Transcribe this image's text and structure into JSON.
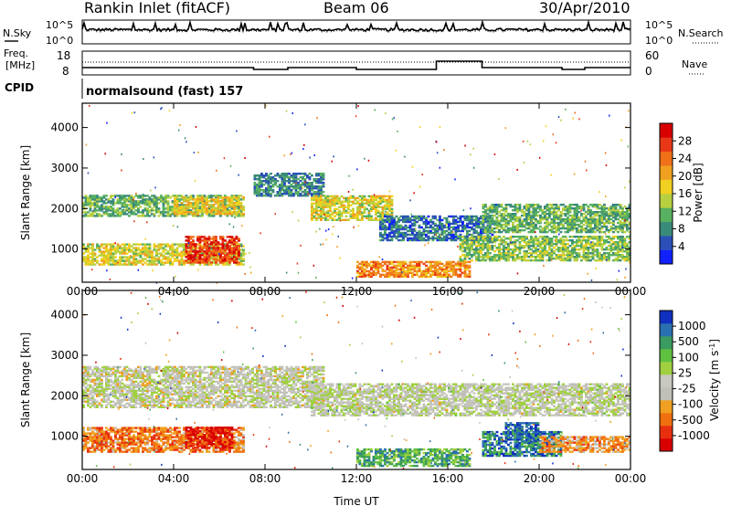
{
  "header": {
    "station": "Rankin Inlet (fitACF)",
    "beam": "Beam 06",
    "date": "30/Apr/2010"
  },
  "labels": {
    "nsky": "N.Sky",
    "nsearch": "N.Search",
    "freq": "Freq.",
    "mhz": "[MHz]",
    "nave": "Nave",
    "cpid": "CPID",
    "cpid_value": "normalsound (fast) 157"
  },
  "noise_axis": {
    "ticks": [
      "10^5",
      "10^0"
    ]
  },
  "freq_axis": {
    "left_ticks": [
      "18",
      "8"
    ],
    "right_ticks": [
      "60",
      "0"
    ]
  },
  "chart_data": [
    {
      "type": "heatmap",
      "name": "power-panel",
      "xlabel": "",
      "ylabel": "Slant Range [km]",
      "x_ticks": [
        "00:00",
        "04:00",
        "08:00",
        "12:00",
        "16:00",
        "20:00",
        "00:00"
      ],
      "y_ticks": [
        "1000",
        "2000",
        "3000",
        "4000"
      ],
      "xlim_hours": [
        0,
        24
      ],
      "ylim_km": [
        180,
        4600
      ],
      "colorbar": {
        "label": "Power [dB]",
        "ticks": [
          "4",
          "8",
          "12",
          "16",
          "20",
          "24",
          "28"
        ],
        "colors": [
          "#1020ff",
          "#2a50b8",
          "#3a8a7a",
          "#58b060",
          "#b8d040",
          "#f0d020",
          "#f0a020",
          "#f07018",
          "#e83818",
          "#d80000"
        ]
      },
      "regions": [
        {
          "t0": 0.0,
          "t1": 7.0,
          "r0": 1800,
          "r1": 2300,
          "level": 0.35
        },
        {
          "t0": 4.0,
          "t1": 7.0,
          "r0": 1850,
          "r1": 2300,
          "level": 0.55
        },
        {
          "t0": 0.0,
          "t1": 7.0,
          "r0": 600,
          "r1": 1100,
          "level": 0.5
        },
        {
          "t0": 4.5,
          "t1": 6.8,
          "r0": 650,
          "r1": 1300,
          "level": 0.85
        },
        {
          "t0": 7.5,
          "t1": 10.5,
          "r0": 2300,
          "r1": 2850,
          "level": 0.25
        },
        {
          "t0": 10.0,
          "t1": 13.5,
          "r0": 1700,
          "r1": 2300,
          "level": 0.5
        },
        {
          "t0": 12.0,
          "t1": 17.0,
          "r0": 300,
          "r1": 700,
          "level": 0.7
        },
        {
          "t0": 13.0,
          "t1": 18.0,
          "r0": 1200,
          "r1": 1800,
          "level": 0.2
        },
        {
          "t0": 16.5,
          "t1": 24.0,
          "r0": 700,
          "r1": 1300,
          "level": 0.4
        },
        {
          "t0": 17.5,
          "t1": 24.0,
          "r0": 1400,
          "r1": 2100,
          "level": 0.35
        }
      ]
    },
    {
      "type": "heatmap",
      "name": "velocity-panel",
      "xlabel": "Time UT",
      "ylabel": "Slant Range [km]",
      "x_ticks": [
        "00:00",
        "04:00",
        "08:00",
        "12:00",
        "16:00",
        "20:00",
        "00:00"
      ],
      "y_ticks": [
        "1000",
        "2000",
        "3000",
        "4000"
      ],
      "xlim_hours": [
        0,
        24
      ],
      "ylim_km": [
        180,
        4600
      ],
      "colorbar": {
        "label": "Velocity [m s",
        "label_sup": "-1",
        "label_end": "]",
        "ticks": [
          "1000",
          "500",
          "100",
          "25",
          "-25",
          "-100",
          "-500",
          "-1000"
        ],
        "colors": [
          "#1030c0",
          "#2a70b0",
          "#3a9a60",
          "#60c040",
          "#a0d040",
          "#c8c8c0",
          "#c0c0b8",
          "#f0a020",
          "#f07010",
          "#e83010",
          "#d80000"
        ]
      },
      "regions": [
        {
          "t0": 0.0,
          "t1": 10.5,
          "r0": 1700,
          "r1": 2700,
          "level": 0.48
        },
        {
          "t0": 0.0,
          "t1": 7.0,
          "r0": 600,
          "r1": 1200,
          "level": 0.25
        },
        {
          "t0": 4.5,
          "t1": 6.5,
          "r0": 700,
          "r1": 1200,
          "level": 0.08
        },
        {
          "t0": 10.0,
          "t1": 24.0,
          "r0": 1500,
          "r1": 2300,
          "level": 0.5
        },
        {
          "t0": 12.0,
          "t1": 17.0,
          "r0": 250,
          "r1": 700,
          "level": 0.72
        },
        {
          "t0": 17.5,
          "t1": 21.0,
          "r0": 500,
          "r1": 1100,
          "level": 0.82
        },
        {
          "t0": 18.5,
          "t1": 20.0,
          "r0": 900,
          "r1": 1350,
          "level": 0.88
        },
        {
          "t0": 20.0,
          "t1": 24.0,
          "r0": 600,
          "r1": 1000,
          "level": 0.3
        }
      ]
    }
  ]
}
